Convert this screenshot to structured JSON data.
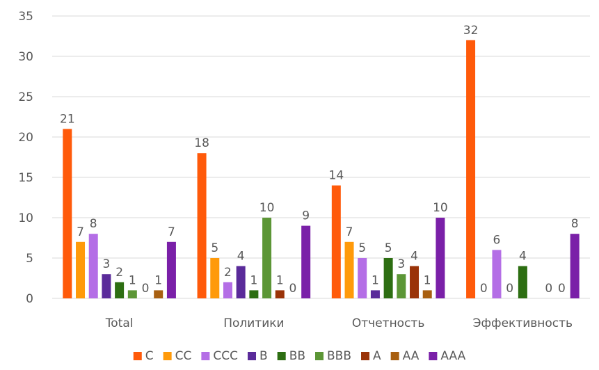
{
  "chart_data": {
    "type": "bar",
    "title": "",
    "xlabel": "",
    "ylabel": "",
    "categories": [
      "Total",
      "Политики",
      "Отчетность",
      "Эффективность"
    ],
    "ylim": [
      0,
      35
    ],
    "yticks": [
      "0",
      "5",
      "10",
      "15",
      "20",
      "25",
      "30",
      "35"
    ],
    "grid": true,
    "legend_position": "bottom",
    "series": [
      {
        "name": "C",
        "color": "#FF5A0A",
        "values": [
          21,
          18,
          14,
          32
        ]
      },
      {
        "name": "CC",
        "color": "#FF9A0A",
        "values": [
          7,
          5,
          7,
          0
        ]
      },
      {
        "name": "CCC",
        "color": "#B46EE6",
        "values": [
          8,
          2,
          5,
          6
        ]
      },
      {
        "name": "B",
        "color": "#5A2B9A",
        "values": [
          3,
          4,
          1,
          0
        ]
      },
      {
        "name": "BB",
        "color": "#2D6E12",
        "values": [
          2,
          1,
          5,
          4
        ]
      },
      {
        "name": "BBB",
        "color": "#5C9636",
        "values": [
          1,
          10,
          3,
          0
        ]
      },
      {
        "name": "A",
        "color": "#9A3308",
        "values": [
          0,
          1,
          4,
          0
        ]
      },
      {
        "name": "AA",
        "color": "#A85F10",
        "values": [
          1,
          0,
          1,
          0
        ]
      },
      {
        "name": "AAA",
        "color": "#7A20A8",
        "values": [
          7,
          9,
          10,
          8
        ]
      }
    ],
    "data_labels": [
      [
        "21",
        "18",
        "14",
        "32"
      ],
      [
        "7",
        "5",
        "7",
        "0"
      ],
      [
        "8",
        "2",
        "5",
        "6"
      ],
      [
        "3",
        "4",
        "1",
        "0"
      ],
      [
        "2",
        "1",
        "5",
        "4"
      ],
      [
        "1",
        "10",
        "3",
        ""
      ],
      [
        "0",
        "1",
        "4",
        "0"
      ],
      [
        "1",
        "0",
        "1",
        "0"
      ],
      [
        "7",
        "9",
        "10",
        "8"
      ]
    ]
  }
}
